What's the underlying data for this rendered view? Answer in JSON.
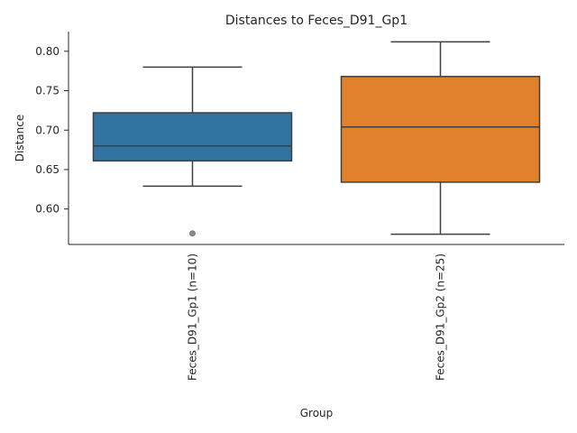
{
  "chart_data": {
    "type": "box",
    "title": "Distances to Feces_D91_Gp1",
    "xlabel": "Group",
    "ylabel": "Distance",
    "ylim": [
      0.555,
      0.825
    ],
    "yticks": [
      0.6,
      0.65,
      0.7,
      0.75,
      0.8
    ],
    "ytick_labels": [
      "0.60",
      "0.65",
      "0.70",
      "0.75",
      "0.80"
    ],
    "grid": false,
    "categories": [
      "Feces_D91_Gp1 (n=10)",
      "Feces_D91_Gp2 (n=25)"
    ],
    "boxes": [
      {
        "category": "Feces_D91_Gp1 (n=10)",
        "whisker_low": 0.629,
        "q1": 0.661,
        "median": 0.68,
        "q3": 0.722,
        "whisker_high": 0.78,
        "outliers": [
          0.569
        ],
        "color": "#3274a1"
      },
      {
        "category": "Feces_D91_Gp2 (n=25)",
        "whisker_low": 0.568,
        "q1": 0.634,
        "median": 0.704,
        "q3": 0.768,
        "whisker_high": 0.812,
        "outliers": [],
        "color": "#e1812c"
      }
    ]
  }
}
